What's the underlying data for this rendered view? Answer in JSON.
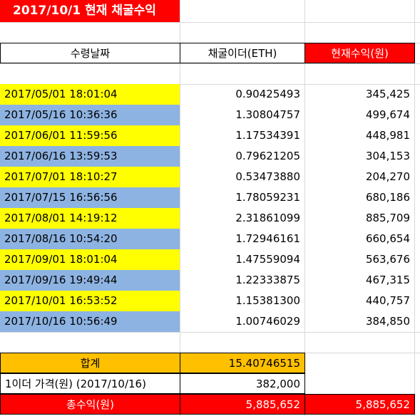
{
  "sheet": {
    "title": "2017/10/1 현재 채굴수익",
    "headers": {
      "date": "수령날짜",
      "eth": "채굴이더(ETH)",
      "value": "현재수익(원)"
    },
    "rows": [
      {
        "date": "2017/05/01 18:01:04",
        "eth": "0.90425493",
        "value": "345,425",
        "color": "yellow"
      },
      {
        "date": "2017/05/16 10:36:36",
        "eth": "1.30804757",
        "value": "499,674",
        "color": "blue"
      },
      {
        "date": "2017/06/01 11:59:56",
        "eth": "1.17534391",
        "value": "448,981",
        "color": "yellow"
      },
      {
        "date": "2017/06/16 13:59:53",
        "eth": "0.79621205",
        "value": "304,153",
        "color": "blue"
      },
      {
        "date": "2017/07/01 18:10:27",
        "eth": "0.53473880",
        "value": "204,270",
        "color": "yellow"
      },
      {
        "date": "2017/07/15 16:56:56",
        "eth": "1.78059231",
        "value": "680,186",
        "color": "blue"
      },
      {
        "date": "2017/08/01 14:19:12",
        "eth": "2.31861099",
        "value": "885,709",
        "color": "yellow"
      },
      {
        "date": "2017/08/16 10:54:20",
        "eth": "1.72946161",
        "value": "660,654",
        "color": "blue"
      },
      {
        "date": "2017/09/01 18:01:04",
        "eth": "1.47559094",
        "value": "563,676",
        "color": "yellow"
      },
      {
        "date": "2017/09/16 19:49:44",
        "eth": "1.22333875",
        "value": "467,315",
        "color": "blue"
      },
      {
        "date": "2017/10/01 16:53:52",
        "eth": "1.15381300",
        "value": "440,757",
        "color": "yellow"
      },
      {
        "date": "2017/10/16 10:56:49",
        "eth": "1.00746029",
        "value": "384,850",
        "color": "blue"
      }
    ],
    "summary": {
      "total_label": "합계",
      "total_eth": "15.40746515",
      "price_label": "1이더 가격(원) (2017/10/16)",
      "price_value": "382,000",
      "profit_label": "총수익(원)",
      "profit_value_b": "5,885,652",
      "profit_value_c": "5,885,652"
    },
    "colors": {
      "yellow": "#ffff00",
      "blue": "#8db3e2",
      "red": "#ff0000",
      "orange": "#ffc000"
    }
  }
}
